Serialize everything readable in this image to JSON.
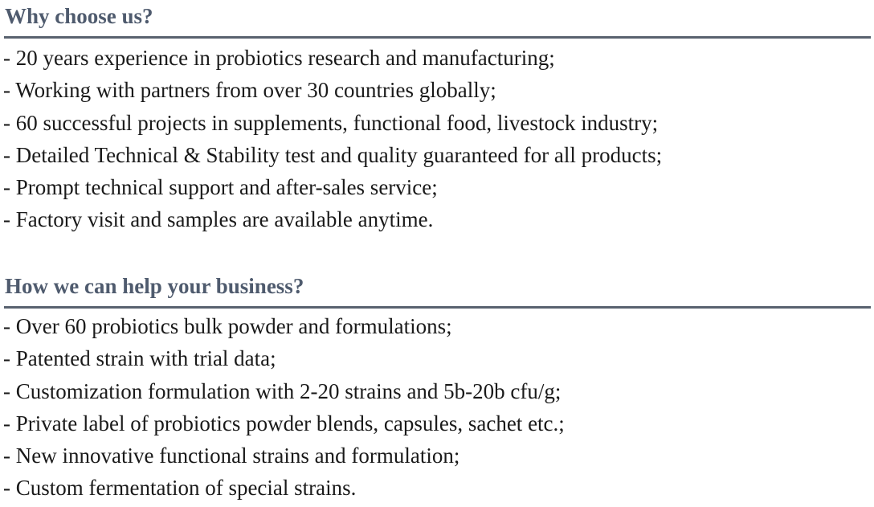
{
  "sections": [
    {
      "heading": "Why choose us?",
      "items": [
        "- 20 years experience in probiotics research and manufacturing;",
        "- Working with partners from over 30 countries globally;",
        "- 60 successful projects in supplements, functional food, livestock industry;",
        "- Detailed Technical & Stability test and quality guaranteed for all products;",
        "- Prompt technical support and after-sales service;",
        "- Factory visit and samples are available anytime."
      ]
    },
    {
      "heading": "How we can help your business?",
      "items": [
        "- Over 60 probiotics bulk powder and formulations;",
        "- Patented strain with trial data;",
        "- Customization formulation with 2-20 strains and 5b-20b cfu/g;",
        "- Private label of probiotics powder blends, capsules, sachet etc.;",
        "- New innovative functional strains and formulation;",
        "- Custom fermentation of special strains."
      ]
    }
  ],
  "colors": {
    "heading": "#4f5b6e",
    "rule": "#59626f",
    "text": "#1a1a1a"
  }
}
